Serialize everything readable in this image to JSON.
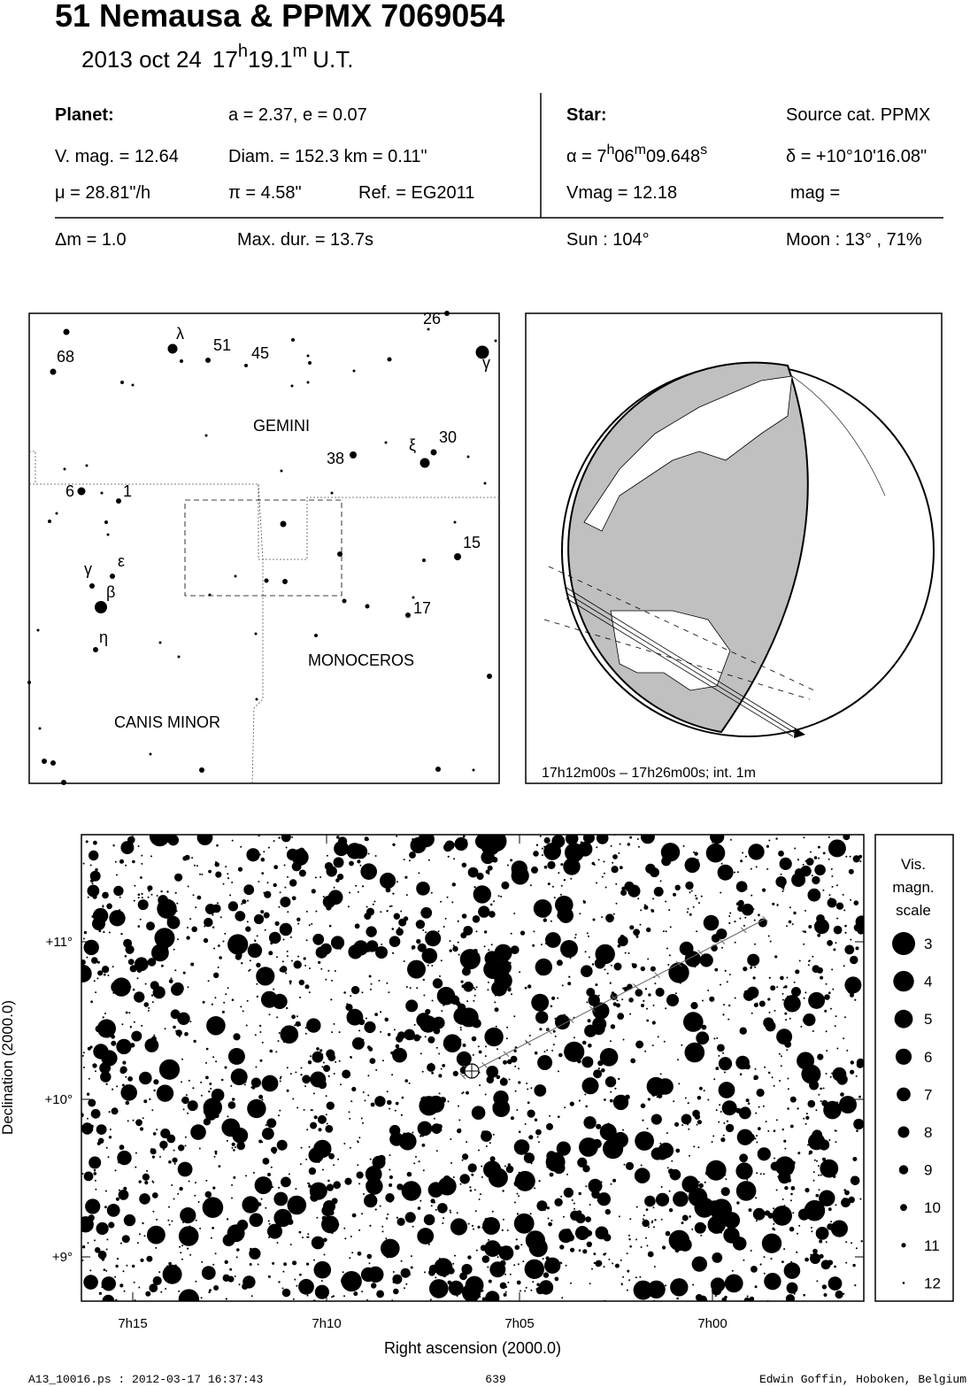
{
  "header": {
    "title": "51 Nemausa  &  PPMX 7069054",
    "date": "2013 oct 24",
    "hours": "17",
    "h": "h",
    "minutes": "19.1",
    "m": "m",
    "zone": "U.T."
  },
  "planet": {
    "heading": "Planet:",
    "elements": "a = 2.37, e = 0.07",
    "vmag": "V. mag. = 12.64",
    "diam": "Diam. = 152.3 km = 0.11\"",
    "motion": "μ =  28.81\"/h",
    "parallax": "π =  4.58\"",
    "ref": "Ref. = EG2011"
  },
  "star": {
    "heading": "Star:",
    "source": "Source cat.  PPMX",
    "ra_prefix": "α =  7",
    "ra_h": "h",
    "ra_min": "06",
    "ra_m": "m",
    "ra_sec": "09.648",
    "ra_s": "s",
    "dec": "δ = +10°10'16.08\"",
    "vmag": "Vmag = 12.18",
    "mag": "mag ="
  },
  "event": {
    "dm": "Δm = 1.0",
    "duration": "Max. dur. = 13.7s",
    "sun": "Sun : 104°",
    "moon": "Moon :  13° , 71%"
  },
  "finder": {
    "labels": [
      "68",
      "λ",
      "51",
      "45",
      "26",
      "γ",
      "ξ",
      "30",
      "38",
      "6",
      "1",
      "15",
      "γ",
      "ε",
      "β",
      "η",
      "17"
    ],
    "constellations": [
      "GEMINI",
      "MONOCEROS",
      "CANIS MINOR"
    ]
  },
  "globe": {
    "caption": "17h12m00s – 17h26m00s; int.  1m"
  },
  "field": {
    "yticks": [
      "+11°",
      "+10°",
      "+9°"
    ],
    "ylabel": "Declination (2000.0)",
    "xticks": [
      "7h15",
      "7h10",
      "7h05",
      "7h00"
    ],
    "xlabel": "Right ascension (2000.0)",
    "legend": {
      "title": [
        "Vis.",
        "magn.",
        "scale"
      ],
      "magnitudes": [
        3,
        4,
        5,
        6,
        7,
        8,
        9,
        10,
        11,
        12
      ]
    }
  },
  "footer": {
    "file": "A13_10016.ps : 2012-03-17 16:37:43",
    "page": "639",
    "author": "Edwin Goffin, Hoboken, Belgium"
  }
}
